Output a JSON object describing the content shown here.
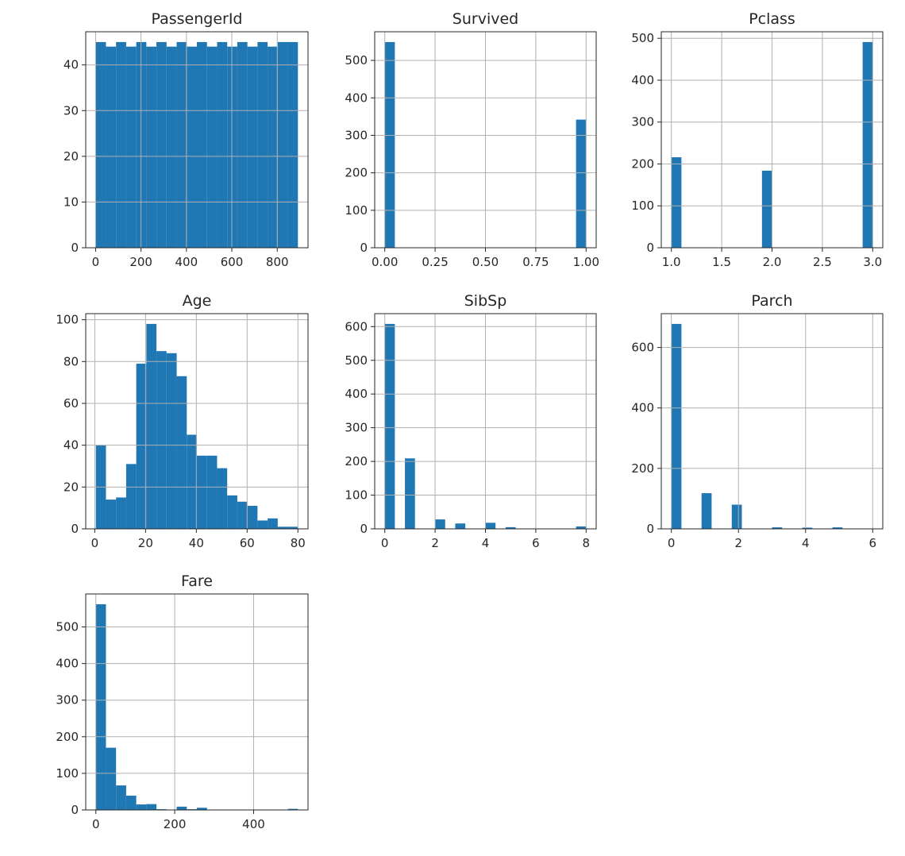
{
  "chart_data": [
    {
      "type": "bar",
      "title": "PassengerId",
      "bin_range": [
        1,
        891
      ],
      "counts": [
        45,
        44,
        45,
        44,
        45,
        44,
        45,
        44,
        45,
        44,
        45,
        44,
        45,
        44,
        45,
        44,
        45,
        44,
        45,
        45
      ],
      "xlim": [
        -43.5,
        935.5
      ],
      "ylim": [
        0,
        47.25
      ],
      "xticks": [
        "0",
        "200",
        "400",
        "600",
        "800"
      ],
      "yticks": [
        "0",
        "10",
        "20",
        "30",
        "40"
      ],
      "grid": true
    },
    {
      "type": "bar",
      "title": "Survived",
      "bin_range": [
        0,
        1
      ],
      "counts": [
        549,
        0,
        0,
        0,
        0,
        0,
        0,
        0,
        0,
        0,
        0,
        0,
        0,
        0,
        0,
        0,
        0,
        0,
        0,
        342
      ],
      "xlim": [
        -0.05,
        1.05
      ],
      "ylim": [
        0,
        576.45
      ],
      "xticks": [
        "0.00",
        "0.25",
        "0.50",
        "0.75",
        "1.00"
      ],
      "yticks": [
        "0",
        "100",
        "200",
        "300",
        "400",
        "500"
      ],
      "grid": true
    },
    {
      "type": "bar",
      "title": "Pclass",
      "bin_range": [
        1,
        3
      ],
      "counts": [
        216,
        0,
        0,
        0,
        0,
        0,
        0,
        0,
        0,
        184,
        0,
        0,
        0,
        0,
        0,
        0,
        0,
        0,
        0,
        491
      ],
      "xlim": [
        0.9,
        3.1
      ],
      "ylim": [
        0,
        515.55
      ],
      "xticks": [
        "1.0",
        "1.5",
        "2.0",
        "2.5",
        "3.0"
      ],
      "yticks": [
        "0",
        "100",
        "200",
        "300",
        "400",
        "500"
      ],
      "grid": true
    },
    {
      "type": "bar",
      "title": "Age",
      "bin_range": [
        0.42,
        80
      ],
      "counts": [
        40,
        14,
        15,
        31,
        79,
        98,
        85,
        84,
        73,
        45,
        35,
        35,
        29,
        16,
        13,
        11,
        4,
        5,
        1,
        1
      ],
      "xlim": [
        -3.56,
        83.98
      ],
      "ylim": [
        0,
        102.9
      ],
      "xticks": [
        "0",
        "20",
        "40",
        "60",
        "80"
      ],
      "yticks": [
        "0",
        "20",
        "40",
        "60",
        "80",
        "100"
      ],
      "grid": true
    },
    {
      "type": "bar",
      "title": "SibSp",
      "bin_range": [
        0,
        8
      ],
      "counts": [
        608,
        0,
        209,
        0,
        0,
        28,
        0,
        16,
        0,
        0,
        18,
        0,
        5,
        0,
        0,
        0,
        0,
        0,
        0,
        7
      ],
      "xlim": [
        -0.4,
        8.4
      ],
      "ylim": [
        0,
        638.4
      ],
      "xticks": [
        "0",
        "2",
        "4",
        "6",
        "8"
      ],
      "yticks": [
        "0",
        "100",
        "200",
        "300",
        "400",
        "500",
        "600"
      ],
      "grid": true
    },
    {
      "type": "bar",
      "title": "Parch",
      "bin_range": [
        0,
        6
      ],
      "counts": [
        678,
        0,
        0,
        118,
        0,
        0,
        80,
        0,
        0,
        0,
        5,
        0,
        0,
        4,
        0,
        0,
        5,
        0,
        0,
        1
      ],
      "xlim": [
        -0.3,
        6.3
      ],
      "ylim": [
        0,
        711.9
      ],
      "xticks": [
        "0",
        "2",
        "4",
        "6"
      ],
      "yticks": [
        "0",
        "200",
        "400",
        "600"
      ],
      "grid": true
    },
    {
      "type": "bar",
      "title": "Fare",
      "bin_range": [
        0,
        512.3292
      ],
      "counts": [
        562,
        170,
        67,
        39,
        15,
        16,
        2,
        0,
        9,
        2,
        6,
        0,
        0,
        0,
        0,
        0,
        0,
        0,
        0,
        3
      ],
      "xlim": [
        -25.6,
        537.9
      ],
      "ylim": [
        0,
        590.1
      ],
      "xticks": [
        "0",
        "200",
        "400"
      ],
      "yticks": [
        "0",
        "100",
        "200",
        "300",
        "400",
        "500"
      ],
      "grid": true
    }
  ],
  "colors": {
    "bar": "#1f77b4",
    "grid": "#b0b0b0",
    "spine": "#262626"
  }
}
